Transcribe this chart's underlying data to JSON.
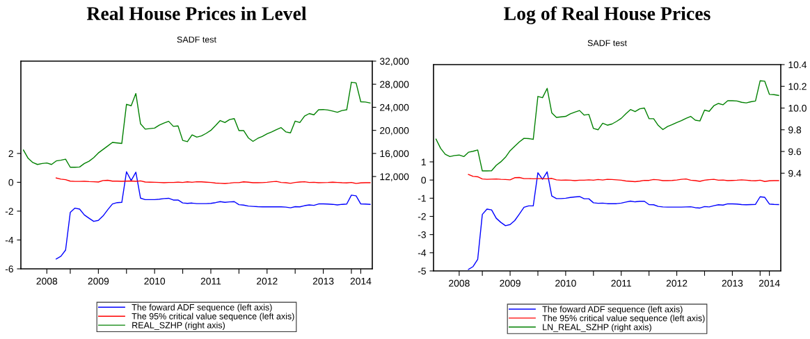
{
  "chart_data": [
    {
      "type": "line",
      "title": "Real House Prices in Level",
      "subtitle": "SADF test",
      "legend": "bottom",
      "grid": false,
      "x": [
        "2008-03",
        "2008-04",
        "2008-05",
        "2008-06",
        "2008-07",
        "2008-08",
        "2008-09",
        "2008-10",
        "2008-11",
        "2008-12",
        "2009-01",
        "2009-02",
        "2009-03",
        "2009-04",
        "2009-05",
        "2009-06",
        "2009-07",
        "2009-08",
        "2009-09",
        "2009-10",
        "2009-11",
        "2009-12",
        "2010-01",
        "2010-02",
        "2010-03",
        "2010-04",
        "2010-05",
        "2010-06",
        "2010-07",
        "2010-08",
        "2010-09",
        "2010-10",
        "2010-11",
        "2010-12",
        "2011-01",
        "2011-02",
        "2011-03",
        "2011-04",
        "2011-05",
        "2011-06",
        "2011-07",
        "2011-08",
        "2011-09",
        "2011-10",
        "2011-11",
        "2011-12",
        "2012-01",
        "2012-02",
        "2012-03",
        "2012-04",
        "2012-05",
        "2012-06",
        "2012-07",
        "2012-08",
        "2012-09",
        "2012-10",
        "2012-11",
        "2012-12",
        "2013-01",
        "2013-02",
        "2013-03",
        "2013-04",
        "2013-05",
        "2013-06",
        "2013-07",
        "2013-08",
        "2013-09",
        "2013-10",
        "2013-11",
        "2013-12",
        "2014-01",
        "2014-02",
        "2014-03",
        "2014-04",
        "2014-05"
      ],
      "xlim": [
        "2008-02-15",
        "2014-05-15"
      ],
      "xticks": [
        {
          "value": "2008-08-01",
          "label": "2008"
        },
        {
          "value": "2009-01-01",
          "label": null
        },
        {
          "value": "2009-07-01",
          "label": "2009"
        },
        {
          "value": "2010-01-01",
          "label": null
        },
        {
          "value": "2010-07-01",
          "label": "2010"
        },
        {
          "value": "2011-01-01",
          "label": null
        },
        {
          "value": "2011-07-01",
          "label": "2011"
        },
        {
          "value": "2012-01-01",
          "label": null
        },
        {
          "value": "2012-07-01",
          "label": "2012"
        },
        {
          "value": "2013-01-01",
          "label": null
        },
        {
          "value": "2013-07-01",
          "label": "2013"
        },
        {
          "value": "2014-01-01",
          "label": null
        },
        {
          "value": "2014-03-01",
          "label": "2014"
        }
      ],
      "ylim": [
        -6,
        8.4
      ],
      "yticks": [
        -6,
        -4,
        -2,
        0,
        2
      ],
      "y2lim": [
        -4000,
        32000
      ],
      "y2ticks": [
        {
          "value": 12000,
          "label": "12,000"
        },
        {
          "value": 16000,
          "label": "16,000"
        },
        {
          "value": 20000,
          "label": "20,000"
        },
        {
          "value": 24000,
          "label": "24,000"
        },
        {
          "value": 28000,
          "label": "28,000"
        },
        {
          "value": 32000,
          "label": "32,000"
        }
      ],
      "series": [
        {
          "name": "The foward ADF sequence (left axis)",
          "color": "#0000ff",
          "values": [
            null,
            null,
            null,
            null,
            null,
            null,
            null,
            -5.32,
            -5.13,
            -4.7,
            -2.09,
            -1.79,
            -1.86,
            -2.26,
            -2.49,
            -2.71,
            -2.64,
            -2.33,
            -1.9,
            -1.5,
            -1.41,
            -1.39,
            0.73,
            0.12,
            0.7,
            -1.1,
            -1.2,
            -1.2,
            -1.2,
            -1.17,
            -1.13,
            -1.11,
            -1.23,
            -1.23,
            -1.43,
            -1.46,
            -1.44,
            -1.48,
            -1.48,
            -1.48,
            -1.46,
            -1.41,
            -1.34,
            -1.39,
            -1.36,
            -1.34,
            -1.55,
            -1.58,
            -1.65,
            -1.67,
            -1.69,
            -1.7,
            -1.7,
            -1.7,
            -1.7,
            -1.7,
            -1.72,
            -1.77,
            -1.69,
            -1.7,
            -1.62,
            -1.57,
            -1.6,
            -1.5,
            -1.5,
            -1.51,
            -1.53,
            -1.57,
            -1.53,
            -1.51,
            -0.89,
            -0.94,
            -1.5,
            -1.51,
            -1.53
          ]
        },
        {
          "name": "The 95% critical value sequence (left axis)",
          "color": "#ff0000",
          "values": [
            null,
            null,
            null,
            null,
            null,
            null,
            null,
            0.3,
            0.22,
            0.18,
            0.08,
            0.06,
            0.06,
            0.07,
            0.05,
            0.04,
            0.02,
            0.12,
            0.14,
            0.08,
            0.08,
            0.07,
            0.08,
            0.09,
            0.07,
            0.1,
            0.02,
            0.01,
            0.0,
            -0.01,
            -0.03,
            -0.01,
            -0.01,
            0.01,
            -0.01,
            0.03,
            0.0,
            0.04,
            0.03,
            0.01,
            -0.01,
            -0.05,
            -0.07,
            -0.09,
            -0.06,
            -0.02,
            -0.02,
            0.03,
            0.01,
            -0.03,
            -0.03,
            -0.02,
            0.0,
            0.04,
            0.06,
            -0.01,
            -0.03,
            -0.07,
            -0.01,
            0.02,
            0.04,
            -0.01,
            0.0,
            -0.03,
            -0.02,
            -0.01,
            0.01,
            -0.01,
            -0.03,
            -0.04,
            -0.01,
            -0.08,
            -0.04,
            -0.03,
            -0.03
          ]
        },
        {
          "name": "REAL_SZHP (right axis)",
          "color": "#008000",
          "axis": "y2",
          "values": [
            16600,
            15170,
            14430,
            14090,
            14260,
            14350,
            14090,
            14700,
            14830,
            15000,
            13610,
            13610,
            13650,
            14260,
            14650,
            15260,
            16090,
            16700,
            17300,
            17910,
            17830,
            17740,
            24520,
            24260,
            26390,
            21130,
            20220,
            20300,
            20390,
            20910,
            21260,
            21570,
            20700,
            20780,
            18260,
            18040,
            19220,
            18830,
            19040,
            19480,
            20000,
            20830,
            21700,
            21350,
            21870,
            22040,
            19960,
            19960,
            18700,
            18090,
            18610,
            18960,
            19390,
            19740,
            20130,
            20480,
            19740,
            19570,
            21610,
            21350,
            22480,
            22910,
            22700,
            23570,
            23610,
            23520,
            23350,
            23130,
            23430,
            23570,
            28350,
            28220,
            24960,
            24910,
            24740
          ]
        }
      ]
    },
    {
      "type": "line",
      "title": "Log of Real House Prices",
      "subtitle": "SADF test",
      "legend": "bottom",
      "grid": false,
      "x": [
        "2008-03",
        "2008-04",
        "2008-05",
        "2008-06",
        "2008-07",
        "2008-08",
        "2008-09",
        "2008-10",
        "2008-11",
        "2008-12",
        "2009-01",
        "2009-02",
        "2009-03",
        "2009-04",
        "2009-05",
        "2009-06",
        "2009-07",
        "2009-08",
        "2009-09",
        "2009-10",
        "2009-11",
        "2009-12",
        "2010-01",
        "2010-02",
        "2010-03",
        "2010-04",
        "2010-05",
        "2010-06",
        "2010-07",
        "2010-08",
        "2010-09",
        "2010-10",
        "2010-11",
        "2010-12",
        "2011-01",
        "2011-02",
        "2011-03",
        "2011-04",
        "2011-05",
        "2011-06",
        "2011-07",
        "2011-08",
        "2011-09",
        "2011-10",
        "2011-11",
        "2011-12",
        "2012-01",
        "2012-02",
        "2012-03",
        "2012-04",
        "2012-05",
        "2012-06",
        "2012-07",
        "2012-08",
        "2012-09",
        "2012-10",
        "2012-11",
        "2012-12",
        "2013-01",
        "2013-02",
        "2013-03",
        "2013-04",
        "2013-05",
        "2013-06",
        "2013-07",
        "2013-08",
        "2013-09",
        "2013-10",
        "2013-11",
        "2013-12",
        "2014-01",
        "2014-02",
        "2014-03",
        "2014-04",
        "2014-05"
      ],
      "xlim": [
        "2008-02-15",
        "2014-05-15"
      ],
      "xticks": [
        {
          "value": "2008-08-01",
          "label": "2008"
        },
        {
          "value": "2009-01-01",
          "label": null
        },
        {
          "value": "2009-07-01",
          "label": "2009"
        },
        {
          "value": "2010-01-01",
          "label": null
        },
        {
          "value": "2010-07-01",
          "label": "2010"
        },
        {
          "value": "2011-01-01",
          "label": null
        },
        {
          "value": "2011-07-01",
          "label": "2011"
        },
        {
          "value": "2012-01-01",
          "label": null
        },
        {
          "value": "2012-07-01",
          "label": "2012"
        },
        {
          "value": "2013-01-01",
          "label": null
        },
        {
          "value": "2013-07-01",
          "label": "2013"
        },
        {
          "value": "2014-01-01",
          "label": null
        },
        {
          "value": "2014-03-01",
          "label": "2014"
        }
      ],
      "ylim": [
        -5,
        6.35
      ],
      "yticks": [
        -5,
        -4,
        -3,
        -2,
        -1,
        0,
        1
      ],
      "y2lim": [
        8.5,
        10.4
      ],
      "y2ticks": [
        9.4,
        9.6,
        9.8,
        {
          "value": 10.0,
          "label": "10.0"
        },
        10.2,
        10.4
      ],
      "series": [
        {
          "name": "The foward ADF sequence (left axis)",
          "color": "#0000ff",
          "values": [
            null,
            null,
            null,
            null,
            null,
            null,
            null,
            -4.92,
            -4.76,
            -4.36,
            -1.89,
            -1.6,
            -1.64,
            -2.1,
            -2.33,
            -2.51,
            -2.45,
            -2.23,
            -1.87,
            -1.5,
            -1.42,
            -1.42,
            0.4,
            0.04,
            0.45,
            -0.88,
            -1.02,
            -1.02,
            -1.0,
            -0.96,
            -0.93,
            -0.91,
            -1.03,
            -1.03,
            -1.25,
            -1.28,
            -1.27,
            -1.3,
            -1.3,
            -1.3,
            -1.27,
            -1.21,
            -1.16,
            -1.2,
            -1.17,
            -1.17,
            -1.35,
            -1.36,
            -1.45,
            -1.48,
            -1.49,
            -1.49,
            -1.49,
            -1.49,
            -1.48,
            -1.47,
            -1.52,
            -1.54,
            -1.46,
            -1.48,
            -1.41,
            -1.36,
            -1.38,
            -1.31,
            -1.31,
            -1.32,
            -1.35,
            -1.36,
            -1.35,
            -1.34,
            -0.92,
            -0.95,
            -1.32,
            -1.34,
            -1.35
          ]
        },
        {
          "name": "The 95% critical value sequence (left axis)",
          "color": "#ff0000",
          "values": [
            null,
            null,
            null,
            null,
            null,
            null,
            null,
            0.31,
            0.2,
            0.18,
            0.06,
            0.04,
            0.05,
            0.06,
            0.04,
            0.03,
            0.01,
            0.13,
            0.14,
            0.08,
            0.08,
            0.07,
            0.08,
            0.08,
            0.07,
            0.09,
            0.01,
            -0.01,
            0.0,
            -0.01,
            -0.03,
            -0.01,
            -0.01,
            0.01,
            -0.01,
            0.03,
            0.0,
            0.04,
            0.03,
            0.01,
            -0.01,
            -0.05,
            -0.07,
            -0.09,
            -0.06,
            -0.02,
            -0.02,
            0.03,
            0.01,
            -0.03,
            -0.03,
            -0.02,
            0.0,
            0.04,
            0.06,
            -0.01,
            -0.03,
            -0.07,
            -0.01,
            0.02,
            0.04,
            -0.01,
            0.0,
            -0.03,
            -0.02,
            -0.01,
            0.01,
            -0.01,
            -0.03,
            -0.04,
            -0.01,
            -0.08,
            -0.04,
            -0.03,
            -0.03
          ]
        },
        {
          "name": "LN_REAL_SZHP (right axis)",
          "color": "#008000",
          "axis": "y2",
          "values": [
            9.714,
            9.628,
            9.574,
            9.553,
            9.563,
            9.567,
            9.553,
            9.593,
            9.602,
            9.614,
            9.421,
            9.421,
            9.423,
            9.472,
            9.505,
            9.547,
            9.607,
            9.649,
            9.688,
            9.721,
            9.719,
            9.712,
            10.107,
            10.095,
            10.181,
            9.956,
            9.914,
            9.919,
            9.923,
            9.947,
            9.963,
            9.977,
            9.935,
            9.942,
            9.812,
            9.8,
            9.86,
            9.842,
            9.853,
            9.877,
            9.905,
            9.947,
            9.986,
            9.967,
            9.993,
            10.0,
            9.902,
            9.902,
            9.84,
            9.802,
            9.83,
            9.847,
            9.867,
            9.884,
            9.905,
            9.923,
            9.888,
            9.881,
            9.981,
            9.97,
            10.021,
            10.042,
            10.03,
            10.067,
            10.067,
            10.065,
            10.053,
            10.047,
            10.058,
            10.065,
            10.251,
            10.247,
            10.126,
            10.123,
            10.116
          ]
        }
      ]
    }
  ]
}
